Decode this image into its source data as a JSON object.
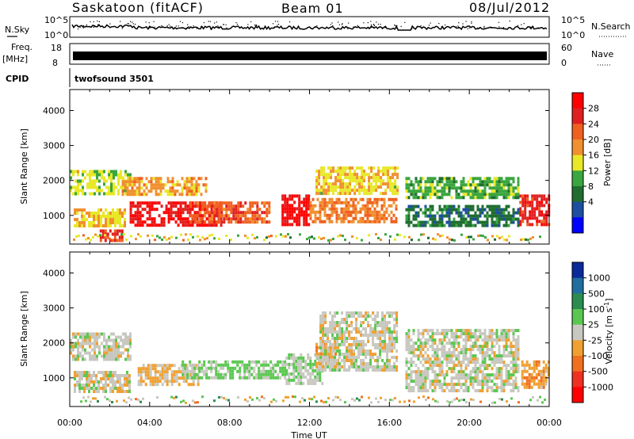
{
  "header": {
    "station": "Saskatoon (fitACF)",
    "beam": "Beam 01",
    "date": "08/Jul/2012"
  },
  "strips": {
    "nsky_label": "N.Sky",
    "nsearch_label": "N.Search",
    "freq_label_1": "Freq.",
    "freq_label_2": "[MHz]",
    "nave_label": "Nave",
    "cpid_label": "CPID",
    "cpid_value": "twofsound 3501",
    "noise_ticks_left": [
      "10^5",
      "10^0"
    ],
    "noise_ticks_right": [
      "10^5",
      "10^0"
    ],
    "freq_ticks_left": [
      "18",
      "8"
    ],
    "nave_ticks_right": [
      "60",
      "0"
    ]
  },
  "panels": {
    "ylabel": "Slant Range [km]",
    "yticks": [
      "4000",
      "3000",
      "2000",
      "1000"
    ],
    "xlabel": "Time UT",
    "xticks": [
      "00:00",
      "04:00",
      "08:00",
      "12:00",
      "16:00",
      "20:00",
      "00:00"
    ]
  },
  "power_colorbar": {
    "label": "Power [dB]",
    "ticks": [
      "28",
      "24",
      "20",
      "16",
      "12",
      "8",
      "4"
    ],
    "colors": [
      "#0000ff",
      "#1d4fa0",
      "#1f6e30",
      "#3aa640",
      "#e8e828",
      "#f09030",
      "#f06020",
      "#e02020",
      "#ff0000"
    ]
  },
  "velocity_colorbar": {
    "label": "Velocity [m s^-1]",
    "ticks": [
      "1000",
      "500",
      "100",
      "25",
      "-25",
      "-100",
      "-500",
      "-1000"
    ],
    "colors": [
      "#0a2a9a",
      "#1f6ea0",
      "#2a8c50",
      "#5ac850",
      "#c8c8c0",
      "#f0a030",
      "#f07020",
      "#f03020",
      "#ff0000"
    ]
  },
  "chart_data": [
    {
      "type": "heatmap",
      "title": "Saskatoon (fitACF) Beam 01 08/Jul/2012",
      "xlabel": "Time UT",
      "ylabel": "Slant Range [km]",
      "colorbar_label": "Power [dB]",
      "colorbar_range": [
        0,
        30
      ],
      "x_range_hours": [
        0,
        24
      ],
      "ylim": [
        180,
        4600
      ],
      "echo_regions": [
        {
          "t_start": 0.0,
          "t_end": 3.0,
          "r_low": 1600,
          "r_high": 2300,
          "value": 14
        },
        {
          "t_start": 0.2,
          "t_end": 2.8,
          "r_low": 700,
          "r_high": 1200,
          "value": 16
        },
        {
          "t_start": 1.5,
          "t_end": 2.6,
          "r_low": 300,
          "r_high": 600,
          "value": 24
        },
        {
          "t_start": 3.0,
          "t_end": 7.6,
          "r_low": 700,
          "r_high": 1400,
          "value": 27
        },
        {
          "t_start": 2.6,
          "t_end": 6.8,
          "r_low": 1600,
          "r_high": 2100,
          "value": 18
        },
        {
          "t_start": 6.0,
          "t_end": 10.0,
          "r_low": 800,
          "r_high": 1400,
          "value": 22
        },
        {
          "t_start": 10.6,
          "t_end": 12.0,
          "r_low": 700,
          "r_high": 1600,
          "value": 28
        },
        {
          "t_start": 12.0,
          "t_end": 16.4,
          "r_low": 800,
          "r_high": 1500,
          "value": 20
        },
        {
          "t_start": 12.3,
          "t_end": 16.4,
          "r_low": 1600,
          "r_high": 2400,
          "value": 16
        },
        {
          "t_start": 16.8,
          "t_end": 22.5,
          "r_low": 1500,
          "r_high": 2100,
          "value": 12
        },
        {
          "t_start": 16.8,
          "t_end": 22.5,
          "r_low": 700,
          "r_high": 1300,
          "value": 8
        },
        {
          "t_start": 22.5,
          "t_end": 24.0,
          "r_low": 700,
          "r_high": 1600,
          "value": 25
        }
      ]
    },
    {
      "type": "heatmap",
      "xlabel": "Time UT",
      "ylabel": "Slant Range [km]",
      "colorbar_label": "Velocity [m s^-1]",
      "colorbar_range": [
        -1000,
        1000
      ],
      "x_range_hours": [
        0,
        24
      ],
      "ylim": [
        180,
        4600
      ],
      "echo_regions": [
        {
          "t_start": 0.0,
          "t_end": 3.0,
          "r_low": 1500,
          "r_high": 2300,
          "value": 0
        },
        {
          "t_start": 0.2,
          "t_end": 3.0,
          "r_low": 600,
          "r_high": 1200,
          "value": 0
        },
        {
          "t_start": 3.4,
          "t_end": 6.4,
          "r_low": 800,
          "r_high": 1400,
          "value": -150
        },
        {
          "t_start": 5.6,
          "t_end": 10.8,
          "r_low": 1000,
          "r_high": 1500,
          "value": 150
        },
        {
          "t_start": 10.8,
          "t_end": 12.6,
          "r_low": 800,
          "r_high": 1700,
          "value": 80
        },
        {
          "t_start": 12.3,
          "t_end": 13.4,
          "r_low": 1300,
          "r_high": 2000,
          "value": -200
        },
        {
          "t_start": 12.5,
          "t_end": 16.4,
          "r_low": 1200,
          "r_high": 2900,
          "value": 0
        },
        {
          "t_start": 16.8,
          "t_end": 22.5,
          "r_low": 600,
          "r_high": 2400,
          "value": 0
        },
        {
          "t_start": 22.6,
          "t_end": 24.0,
          "r_low": 700,
          "r_high": 1500,
          "value": -250
        }
      ]
    }
  ]
}
